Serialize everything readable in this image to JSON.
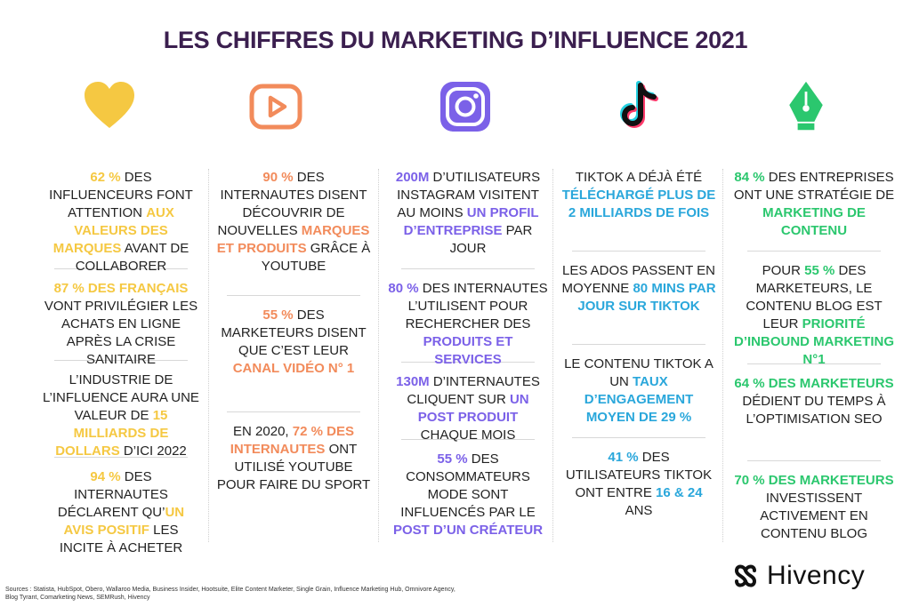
{
  "title": "LES CHIFFRES DU MARKETING D’INFLUENCE 2021",
  "icons": [
    "heart-icon",
    "youtube-icon",
    "instagram-icon",
    "tiktok-icon",
    "pen-nib-icon"
  ],
  "colors": {
    "title": "#3b1f4f",
    "yellow": "#f5c842",
    "orange": "#f28b5b",
    "purple": "#7b61e8",
    "blue": "#2aa7db",
    "green": "#2bc76e"
  },
  "col1": {
    "s1": {
      "a": "62 %",
      "b": " DES INFLUENCEURS FONT ATTENTION ",
      "c": "AUX VALEURS DES  MARQUES",
      "d": " AVANT DE COLLABORER"
    },
    "s2": {
      "a": "87 % DES FRANÇAIS",
      "b": " VONT PRIVILÉGIER LES ACHATS EN LIGNE APRÈS LA CRISE SANITAIRE"
    },
    "s3": {
      "a": "L’INDUSTRIE DE L’INFLUENCE AURA UNE VALEUR DE ",
      "b": "15 MILLIARDS DE DOLLARS",
      "c": "  D’ICI  2022"
    },
    "s4": {
      "a": "94 %",
      "b": " DES INTERNAUTES DÉCLARENT QU’",
      "c": "UN AVIS POSITIF",
      "d": " LES INCITE À ACHETER"
    }
  },
  "col2": {
    "s1": {
      "a": "90 %",
      "b": " DES INTERNAUTES DISENT DÉCOUVRIR DE NOUVELLES ",
      "c": "MARQUES ET PRODUITS",
      "d": " GRÂCE À YOUTUBE"
    },
    "s2": {
      "a": "55 %",
      "b": " DES MARKETEURS DISENT QUE C’EST LEUR ",
      "c": "CANAL VIDÉO N° 1"
    },
    "s3": {
      "a": "EN 2020, ",
      "b": "72 % DES INTERNAUTES",
      "c": " ONT UTILISÉ YOUTUBE POUR FAIRE DU SPORT"
    }
  },
  "col3": {
    "s1": {
      "a": "200M",
      "b": " D’UTILISATEURS INSTAGRAM VISITENT AU MOINS ",
      "c": "UN PROFIL D’ENTREPRISE",
      "d": " PAR JOUR"
    },
    "s2": {
      "a": "80 %",
      "b": " DES INTERNAUTES L’UTILISENT POUR RECHERCHER DES ",
      "c": "PRODUITS ET SERVICES"
    },
    "s3": {
      "a": "130M",
      "b": " D’INTERNAUTES CLIQUENT SUR ",
      "c": "UN POST PRODUIT",
      "d": " CHAQUE MOIS"
    },
    "s4": {
      "a": "55 %",
      "b": " DES CONSOMMATEURS MODE SONT INFLUENCÉS PAR LE ",
      "c": "POST  D’UN CRÉATEUR"
    }
  },
  "col4": {
    "s1": {
      "a": "TIKTOK A DÉJÀ ÉTÉ ",
      "b": "TÉLÉCHARGÉ  PLUS DE 2 MILLIARDS DE FOIS"
    },
    "s2": {
      "a": "LES ADOS PASSENT EN MOYENNE  ",
      "b": "80 MINS PAR JOUR SUR TIKTOK"
    },
    "s3": {
      "a": "LE CONTENU TIKTOK A UN ",
      "b": "TAUX D’ENGAGEMENT MOYEN DE  29 %"
    },
    "s4": {
      "a": "41 %",
      "b": " DES UTILISATEURS TIKTOK ONT ENTRE ",
      "c": "16 & 24",
      "d": " ANS"
    }
  },
  "col5": {
    "s1": {
      "a": "84 %",
      "b": " DES ENTREPRISES ONT UNE STRATÉGIE DE ",
      "c": "MARKETING DE CONTENU"
    },
    "s2": {
      "a": "POUR ",
      "b": "55 %",
      "c": " DES MARKETEURS, LE CONTENU BLOG EST LEUR ",
      "d": "PRIORITÉ D’INBOUND MARKETING N°1"
    },
    "s3": {
      "a": "64 % DES MARKETEURS",
      "b": " DÉDIENT DU TEMPS À L’OPTIMISATION SEO"
    },
    "s4": {
      "a": "70 % DES MARKETEURS",
      "b": " INVESTISSENT ACTIVEMENT EN CONTENU BLOG"
    }
  },
  "sources": "Sources : Statista, HubSpot, Obero, Wallaroo Media, Business Insider, Hootsuite, Elite Content Marketer, Single Grain, Influence Marketing Hub, Omnivore Agency, Blog Tyrant, Comarketing News, SEMRush,  Hivency",
  "brand": "Hivency"
}
